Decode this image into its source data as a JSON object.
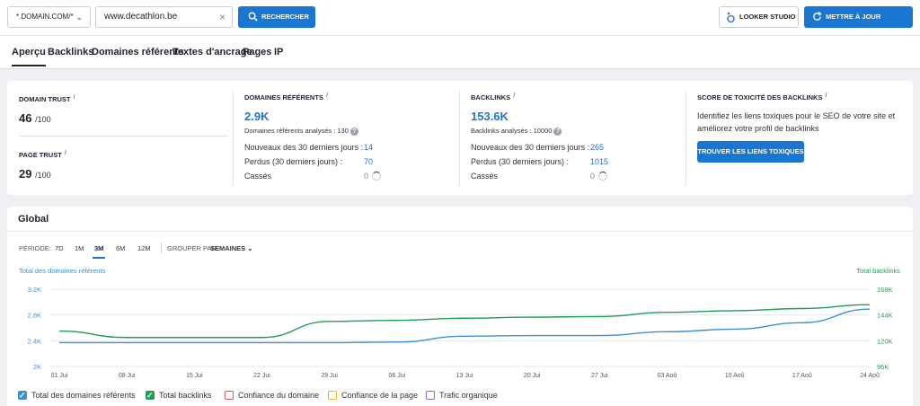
{
  "toolbar": {
    "domain_select": "*.DOMAIN.COM/*",
    "url_value": "www.decathlon.be",
    "search_label": "RECHERCHER",
    "looker_label": "LOOKER STUDIO",
    "update_label": "METTRE À JOUR RAPPORT"
  },
  "tabs": [
    "Aperçu",
    "Backlinks",
    "Domaines référents",
    "Textes d'ancrage",
    "Pages",
    "IP"
  ],
  "stats": {
    "domain_trust": {
      "label": "DOMAIN TRUST",
      "info": "i",
      "value": "46",
      "suffix": "/100"
    },
    "page_trust": {
      "label": "PAGE TRUST",
      "info": "i",
      "value": "29",
      "suffix": "/100"
    },
    "ref_domains": {
      "label": "DOMAINES RÉFÉRENTS",
      "info": "i",
      "value": "2.9K",
      "analyzed": "Domaines référents analysés : 130",
      "new_label": "Nouveaux des 30 derniers jours :",
      "new_value": "14",
      "lost_label": "Perdus (30 derniers jours) :",
      "lost_value": "70",
      "broken_label": "Cassés",
      "broken_value": "0"
    },
    "backlinks": {
      "label": "BACKLINKS",
      "info": "i",
      "value": "153.6K",
      "analyzed": "Backlinks analysés : 10000",
      "new_label": "Nouveaux des 30 derniers jours :",
      "new_value": "265",
      "lost_label": "Perdus (30 derniers jours) :",
      "lost_value": "1015",
      "broken_label": "Cassés",
      "broken_value": "0"
    },
    "toxicity": {
      "label": "SCORE DE TOXICITÉ DES BACKLINKS",
      "info": "i",
      "text": "Identifiez les liens toxiques pour le SEO de votre site et améliorez votre profil de backlinks",
      "button": "TROUVER LES LIENS TOXIQUES"
    }
  },
  "global": {
    "title": "Global",
    "period_label": "PÉRIODE:",
    "periods": [
      "7D",
      "1M",
      "3M",
      "6M",
      "12M"
    ],
    "group_label": "GROUPER PAR:",
    "group_value": "SEMAINES",
    "legend": [
      {
        "label": "Total des domaines référents",
        "checked": true,
        "color": "#3b8fd9"
      },
      {
        "label": "Total backlinks",
        "checked": true,
        "color": "#1f9d55"
      },
      {
        "label": "Confiance du domaine",
        "checked": false,
        "color": "#e05252"
      },
      {
        "label": "Confiance de la page",
        "checked": false,
        "color": "#f0b429"
      },
      {
        "label": "Trafic organique",
        "checked": false,
        "color": "#7c6fd4"
      }
    ]
  },
  "chart_data": {
    "type": "line",
    "y_left_label": "Total des domaines référents",
    "y_right_label": "Total backlinks",
    "x": [
      "01 Jui",
      "08 Jui",
      "15 Jui",
      "22 Jui",
      "29 Jui",
      "06 Jui",
      "13 Jui",
      "20 Jui",
      "27 Jui",
      "03 Aoû",
      "10 Aoû",
      "17 Aoû",
      "24 Aoû"
    ],
    "y_left_ticks": [
      "2K",
      "2.4K",
      "2.8K",
      "3.2K"
    ],
    "y_left_lim": [
      2000,
      3200
    ],
    "y_right_ticks": [
      "96K",
      "120K",
      "144K",
      "168K"
    ],
    "y_right_lim": [
      96000,
      168000
    ],
    "series": [
      {
        "name": "Total des domaines référents",
        "axis": "left",
        "color": "#3b8fd9",
        "values": [
          2370,
          2370,
          2370,
          2370,
          2370,
          2380,
          2470,
          2480,
          2480,
          2540,
          2580,
          2680,
          2890
        ]
      },
      {
        "name": "Total backlinks",
        "axis": "right",
        "color": "#1f9d55",
        "values": [
          129000,
          123000,
          123000,
          123000,
          138000,
          139000,
          141000,
          142000,
          142500,
          146500,
          148000,
          150000,
          153600
        ]
      }
    ]
  }
}
